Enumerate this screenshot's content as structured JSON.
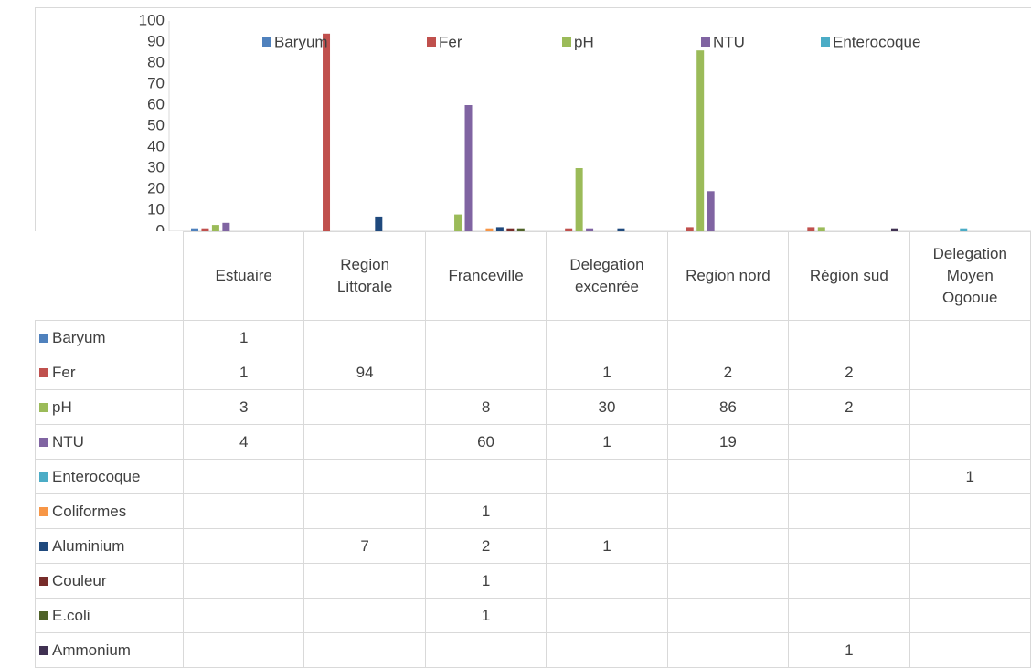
{
  "chart_data": {
    "type": "bar",
    "categories": [
      "Estuaire",
      "Region Littorale",
      "Franceville",
      "Delegation excenrée",
      "Region nord",
      "Région sud",
      "Delegation Moyen Ogooue"
    ],
    "series": [
      {
        "name": "Baryum",
        "color": "#4f81bd",
        "values": [
          1,
          null,
          null,
          null,
          null,
          null,
          null
        ]
      },
      {
        "name": "Fer",
        "color": "#c0504d",
        "values": [
          1,
          94,
          null,
          1,
          2,
          2,
          null
        ]
      },
      {
        "name": "pH",
        "color": "#9bbb59",
        "values": [
          3,
          null,
          8,
          30,
          86,
          2,
          null
        ]
      },
      {
        "name": "NTU",
        "color": "#8064a2",
        "values": [
          4,
          null,
          60,
          1,
          19,
          null,
          null
        ]
      },
      {
        "name": "Enterocoque",
        "color": "#4bacc6",
        "values": [
          null,
          null,
          null,
          null,
          null,
          null,
          1
        ]
      },
      {
        "name": "Coliformes",
        "color": "#f79646",
        "values": [
          null,
          null,
          1,
          null,
          null,
          null,
          null
        ]
      },
      {
        "name": "Aluminium",
        "color": "#1f497d",
        "values": [
          null,
          7,
          2,
          1,
          null,
          null,
          null
        ]
      },
      {
        "name": "Couleur",
        "color": "#772c2a",
        "values": [
          null,
          null,
          1,
          null,
          null,
          null,
          null
        ]
      },
      {
        "name": "E.coli",
        "color": "#4f6228",
        "values": [
          null,
          null,
          1,
          null,
          null,
          null,
          null
        ]
      },
      {
        "name": "Ammonium",
        "color": "#403152",
        "values": [
          null,
          null,
          null,
          null,
          null,
          1,
          null
        ]
      }
    ],
    "legend_series": [
      0,
      1,
      2,
      3,
      4
    ],
    "ylim": [
      0,
      100
    ],
    "yticks": [
      0,
      10,
      20,
      30,
      40,
      50,
      60,
      70,
      80,
      90,
      100
    ],
    "grid": false
  }
}
